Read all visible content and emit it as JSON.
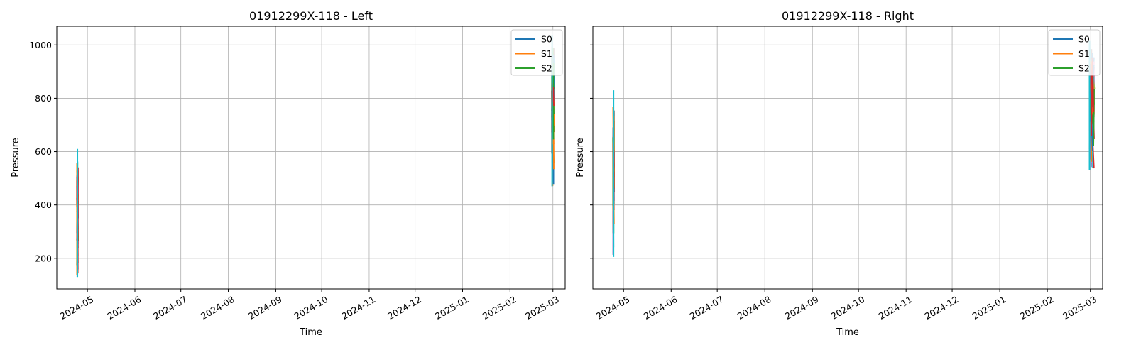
{
  "chart_data": [
    {
      "type": "line",
      "title": "01912299X-118 - Left",
      "xlabel": "Time",
      "ylabel": "Pressure",
      "xlim": [
        "2024-04-11",
        "2025-03-09"
      ],
      "ylim": [
        85,
        1070
      ],
      "x_ticks": [
        "2024-05",
        "2024-06",
        "2024-07",
        "2024-08",
        "2024-09",
        "2024-10",
        "2024-11",
        "2024-12",
        "2025-01",
        "2025-02",
        "2025-03"
      ],
      "y_ticks": [
        200,
        400,
        600,
        800,
        1000
      ],
      "grid": true,
      "legend_position": "top-right",
      "legend_entries": [
        "S0",
        "S1",
        "S2"
      ],
      "colors": {
        "S0": "#1f77b4",
        "S1": "#ff7f0e",
        "S2": "#2ca02c",
        "C3": "#d62728",
        "C4": "#9467bd",
        "C5": "#8c564b",
        "C6": "#e377c2",
        "C7": "#7f7f7f",
        "C8": "#bcbd22",
        "C9": "#17becf"
      },
      "clusters": [
        {
          "x": "2024-04-24",
          "x_end": "2024-04-25",
          "y_min": 130,
          "y_max": 610
        },
        {
          "x": "2025-02-28",
          "x_end": "2025-03-02",
          "y_min": 470,
          "y_max": 1035
        }
      ]
    },
    {
      "type": "line",
      "title": "01912299X-118 - Right",
      "xlabel": "Time",
      "ylabel": "Pressure",
      "xlim": [
        "2024-04-11",
        "2025-03-09"
      ],
      "ylim": [
        85,
        1070
      ],
      "x_ticks": [
        "2024-05",
        "2024-06",
        "2024-07",
        "2024-08",
        "2024-09",
        "2024-10",
        "2024-11",
        "2024-12",
        "2025-01",
        "2025-02",
        "2025-03"
      ],
      "y_ticks": [
        200,
        400,
        600,
        800,
        1000
      ],
      "grid": true,
      "legend_position": "top-right",
      "legend_entries": [
        "S0",
        "S1",
        "S2"
      ],
      "colors": {
        "S0": "#1f77b4",
        "S1": "#ff7f0e",
        "S2": "#2ca02c",
        "C3": "#d62728",
        "C4": "#9467bd",
        "C5": "#8c564b",
        "C6": "#e377c2",
        "C7": "#7f7f7f",
        "C8": "#bcbd22",
        "C9": "#17becf"
      },
      "clusters": [
        {
          "x": "2024-04-24",
          "x_end": "2024-04-25",
          "y_min": 205,
          "y_max": 830
        },
        {
          "x": "2025-02-28",
          "x_end": "2025-03-04",
          "y_min": 530,
          "y_max": 1015
        }
      ]
    }
  ]
}
